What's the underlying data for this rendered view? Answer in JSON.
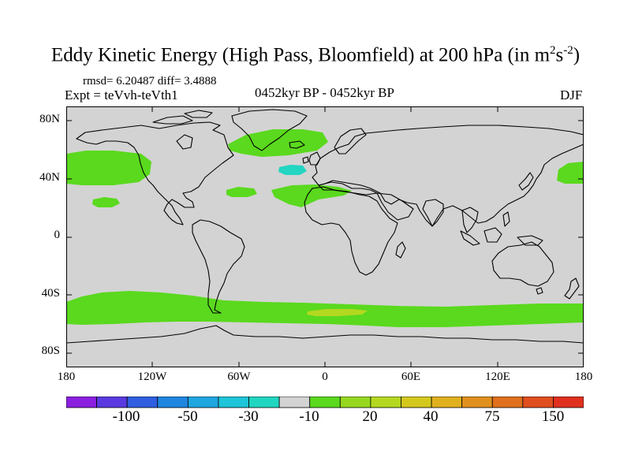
{
  "title": {
    "main": "Eddy Kinetic Energy (High Pass, Bloomfield) at 200 hPa (in m",
    "sup1": "2",
    "mid": "s",
    "sup2": "-2",
    "end": ")"
  },
  "stats": "rmsd= 6.20487 diff= 3.4888",
  "experiment": "Expt = teVvh-teVth1",
  "period": "0452kyr BP - 0452kyr BP",
  "season": "DJF",
  "colors": {
    "land_ocean_background": "#d3d3d3",
    "coastline": "#000000",
    "positive_20": "#5ad91e",
    "positive_40": "#b4d820",
    "negative_10": "#22d6c2"
  },
  "lat_ticks": [
    "80N",
    "40N",
    "0",
    "40S",
    "80S"
  ],
  "lon_ticks": [
    "180",
    "120W",
    "60W",
    "0",
    "60E",
    "120E",
    "180"
  ],
  "colorbar": {
    "colors": [
      "#8a1fe0",
      "#5a3ae0",
      "#2f5ee0",
      "#1f86e0",
      "#1ea6e0",
      "#1ec4d8",
      "#20d6c0",
      "#d3d3d3",
      "#5ad91e",
      "#96d820",
      "#b4d820",
      "#d4c81e",
      "#e0b01e",
      "#e0901e",
      "#e0701e",
      "#e04e1e",
      "#e0301e"
    ],
    "labels": [
      "-100",
      "-50",
      "-30",
      "-10",
      "20",
      "40",
      "75",
      "150"
    ]
  },
  "map_data": {
    "projection": "cylindrical-equidistant",
    "lon_range": [
      -180,
      180
    ],
    "lat_range": [
      -90,
      90
    ],
    "contour_regions": [
      {
        "level": "20",
        "region": "North Pacific storm track"
      },
      {
        "level": "20",
        "region": "North Atlantic / Greenland"
      },
      {
        "level": "20",
        "region": "Subtropical North Atlantic / North Africa"
      },
      {
        "level": "20",
        "region": "Southern Ocean band"
      },
      {
        "level": "40",
        "region": "South Atlantic / Indian Ocean sector"
      },
      {
        "level": "-10",
        "region": "Central North Atlantic"
      }
    ]
  }
}
